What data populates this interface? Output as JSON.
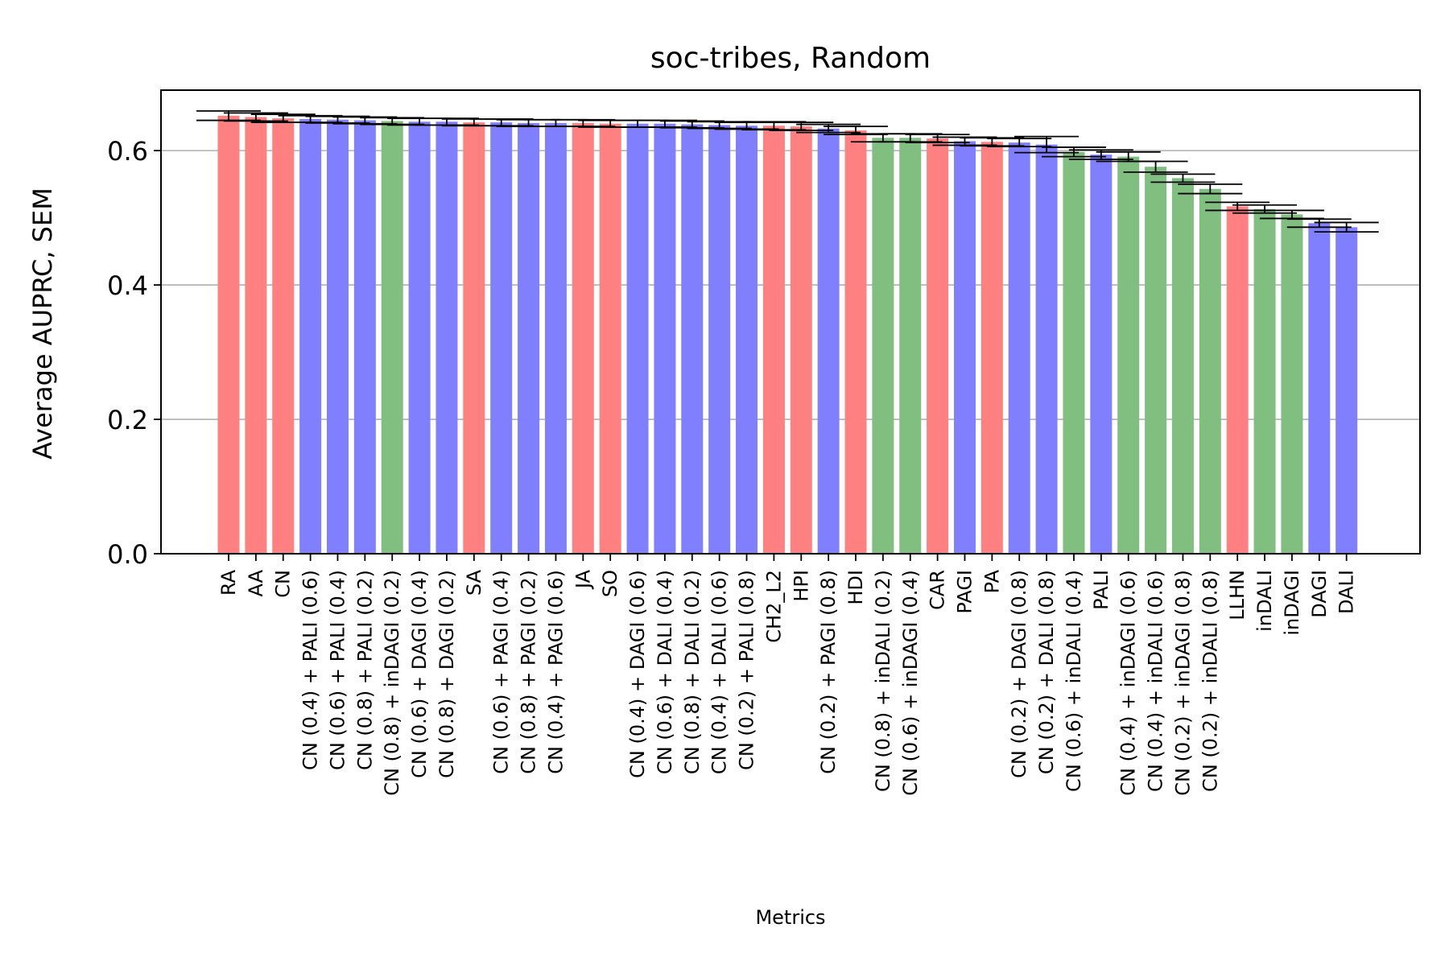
{
  "chart_data": {
    "type": "bar",
    "title": "soc-tribes, Random",
    "xlabel": "Metrics",
    "ylabel": "Average AUPRC, SEM",
    "ylim": [
      0,
      0.69
    ],
    "yticks": [
      0.0,
      0.2,
      0.4,
      0.6
    ],
    "ytick_labels": [
      "0.0",
      "0.2",
      "0.4",
      "0.6"
    ],
    "grid": "horizontal",
    "colors": {
      "red": "#ff8080",
      "blue": "#8080ff",
      "green": "#80bf80"
    },
    "categories": [
      "RA",
      "AA",
      "CN",
      "CN (0.4) + PALI (0.6)",
      "CN (0.6) + PALI (0.4)",
      "CN (0.8) + PALI (0.2)",
      "CN (0.8) + inDAGI (0.2)",
      "CN (0.6) + DAGI (0.4)",
      "CN (0.8) + DAGI (0.2)",
      "SA",
      "CN (0.6) + PAGI (0.4)",
      "CN (0.8) + PAGI (0.2)",
      "CN (0.4) + PAGI (0.6)",
      "JA",
      "SO",
      "CN (0.4) + DAGI (0.6)",
      "CN (0.6) + DALI (0.4)",
      "CN (0.8) + DALI (0.2)",
      "CN (0.4) + DALI (0.6)",
      "CN (0.2) + PALI (0.8)",
      "CH2_L2",
      "HPI",
      "CN (0.2) + PAGI (0.8)",
      "HDI",
      "CN (0.8) + inDALI (0.2)",
      "CN (0.6) + inDAGI (0.4)",
      "CAR",
      "PAGI",
      "PA",
      "CN (0.2) + DAGI (0.8)",
      "CN (0.2) + DALI (0.8)",
      "CN (0.6) + inDALI (0.4)",
      "PALI",
      "CN (0.4) + inDAGI (0.6)",
      "CN (0.4) + inDALI (0.6)",
      "CN (0.2) + inDAGI (0.8)",
      "CN (0.2) + inDALI (0.8)",
      "LLHN",
      "inDALI",
      "inDAGI",
      "DAGI",
      "DALI"
    ],
    "values": [
      0.652,
      0.65,
      0.648,
      0.647,
      0.646,
      0.645,
      0.644,
      0.643,
      0.643,
      0.642,
      0.642,
      0.641,
      0.641,
      0.641,
      0.64,
      0.64,
      0.64,
      0.639,
      0.638,
      0.637,
      0.637,
      0.636,
      0.633,
      0.63,
      0.619,
      0.619,
      0.618,
      0.614,
      0.613,
      0.612,
      0.609,
      0.598,
      0.594,
      0.591,
      0.576,
      0.559,
      0.543,
      0.517,
      0.513,
      0.505,
      0.492,
      0.486
    ],
    "errors": [
      0.007,
      0.006,
      0.006,
      0.005,
      0.005,
      0.005,
      0.005,
      0.005,
      0.005,
      0.005,
      0.005,
      0.005,
      0.005,
      0.005,
      0.005,
      0.005,
      0.005,
      0.005,
      0.005,
      0.005,
      0.006,
      0.006,
      0.006,
      0.006,
      0.006,
      0.006,
      0.006,
      0.006,
      0.006,
      0.006,
      0.012,
      0.007,
      0.007,
      0.007,
      0.008,
      0.006,
      0.007,
      0.006,
      0.006,
      0.006,
      0.006,
      0.007
    ],
    "bar_colors": [
      "red",
      "red",
      "red",
      "blue",
      "blue",
      "blue",
      "green",
      "blue",
      "blue",
      "red",
      "blue",
      "blue",
      "blue",
      "red",
      "red",
      "blue",
      "blue",
      "blue",
      "blue",
      "blue",
      "red",
      "red",
      "blue",
      "red",
      "green",
      "green",
      "red",
      "blue",
      "red",
      "blue",
      "blue",
      "green",
      "blue",
      "green",
      "green",
      "green",
      "green",
      "red",
      "green",
      "green",
      "blue",
      "blue"
    ]
  }
}
